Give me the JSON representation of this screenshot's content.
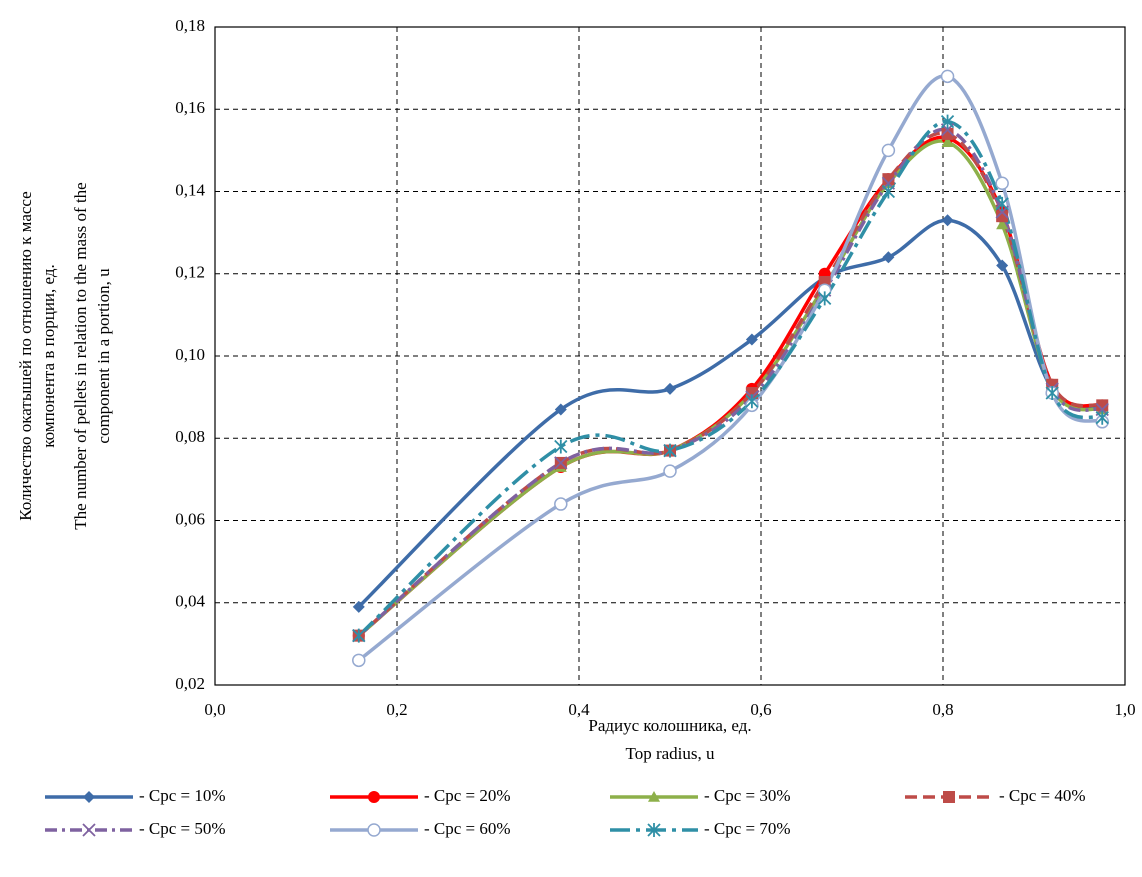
{
  "chart_data": {
    "type": "line",
    "y_label": [
      "Количество  окатышей  по отношению к массе",
      "компонента в порции, ед.",
      "The number of pellets in relation to the mass of the",
      "component in a portion, u"
    ],
    "x_label": [
      "Радиус колошника,  ед.",
      "Top radius, u"
    ],
    "x": [
      0.158,
      0.38,
      0.5,
      0.59,
      0.67,
      0.74,
      0.805,
      0.865,
      0.92,
      0.975
    ],
    "xlim": [
      0,
      1
    ],
    "xticks": [
      {
        "value": 0,
        "label": "0,0"
      },
      {
        "value": 0.2,
        "label": "0,2"
      },
      {
        "value": 0.4,
        "label": "0,4"
      },
      {
        "value": 0.6,
        "label": "0,6"
      },
      {
        "value": 0.8,
        "label": "0,8"
      },
      {
        "value": 1,
        "label": "1,0"
      }
    ],
    "ylim": [
      0.02,
      0.18
    ],
    "yticks": [
      {
        "value": 0.02,
        "label": "0,02"
      },
      {
        "value": 0.04,
        "label": "0,04"
      },
      {
        "value": 0.06,
        "label": "0,06"
      },
      {
        "value": 0.08,
        "label": "0,08"
      },
      {
        "value": 0.1,
        "label": "0,10"
      },
      {
        "value": 0.12,
        "label": "0,12"
      },
      {
        "value": 0.14,
        "label": "0,14"
      },
      {
        "value": 0.16,
        "label": "0,16"
      },
      {
        "value": 0.18,
        "label": "0,18"
      }
    ],
    "grid": true,
    "smooth": true,
    "series": [
      {
        "name": "- Cpc = 10%",
        "color": "#3e6ca8",
        "marker": "diamond",
        "dash": "solid",
        "values": [
          0.039,
          0.087,
          0.092,
          0.104,
          0.119,
          0.124,
          0.133,
          0.122,
          0.092,
          0.087
        ]
      },
      {
        "name": "- Cpc = 20%",
        "color": "#ff0000",
        "marker": "circle",
        "dash": "solid",
        "values": [
          0.032,
          0.073,
          0.077,
          0.092,
          0.12,
          0.143,
          0.153,
          0.135,
          0.093,
          0.088
        ]
      },
      {
        "name": "- Cpc = 30%",
        "color": "#8db04a",
        "marker": "triangle",
        "dash": "solid",
        "values": [
          0.032,
          0.073,
          0.077,
          0.091,
          0.117,
          0.142,
          0.152,
          0.132,
          0.092,
          0.087
        ]
      },
      {
        "name": "- Cpc = 40%",
        "color": "#be4b48",
        "marker": "square",
        "dash": "dash",
        "values": [
          0.032,
          0.074,
          0.077,
          0.091,
          0.118,
          0.143,
          0.154,
          0.134,
          0.093,
          0.088
        ]
      },
      {
        "name": "- Cpc = 50%",
        "color": "#7f62a0",
        "marker": "x",
        "dash": "dashdot",
        "values": [
          0.032,
          0.074,
          0.077,
          0.09,
          0.116,
          0.142,
          0.155,
          0.135,
          0.092,
          0.087
        ]
      },
      {
        "name": "- Cpc = 60%",
        "color": "#95a9d0",
        "marker": "opencircle",
        "dash": "solid",
        "values": [
          0.026,
          0.064,
          0.072,
          0.088,
          0.116,
          0.15,
          0.168,
          0.142,
          0.091,
          0.084
        ]
      },
      {
        "name": "- Cpc = 70%",
        "color": "#2f8fa6",
        "marker": "asterisk",
        "dash": "longdashdot",
        "values": [
          0.032,
          0.078,
          0.077,
          0.089,
          0.114,
          0.14,
          0.157,
          0.137,
          0.091,
          0.085
        ]
      }
    ]
  }
}
